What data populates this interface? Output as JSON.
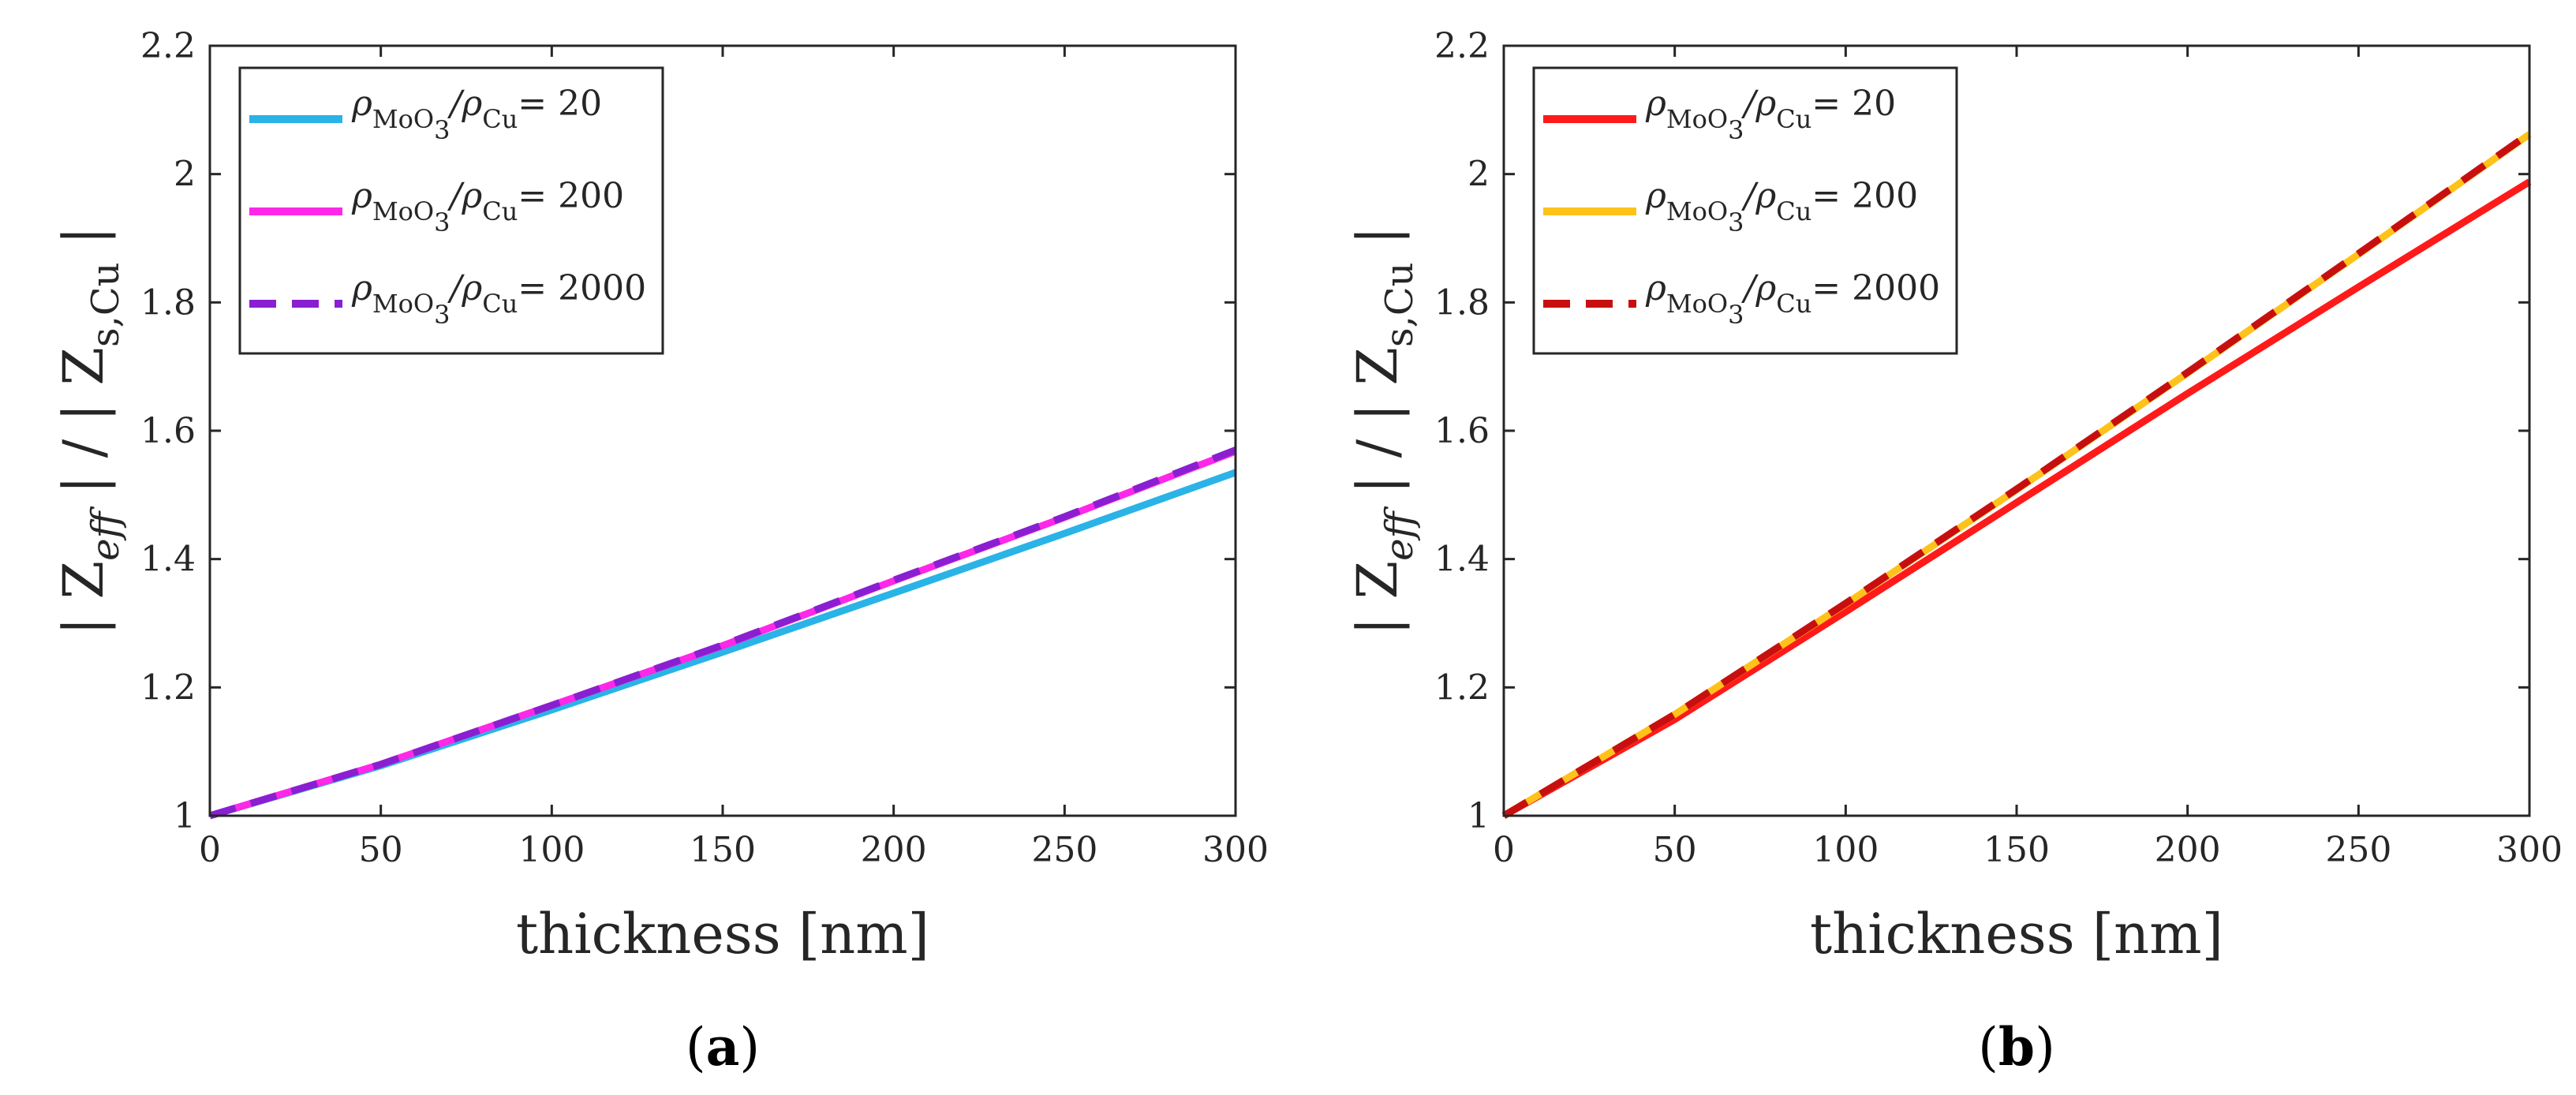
{
  "chart_data": [
    {
      "type": "line",
      "panel": "a",
      "caption": {
        "open": "(",
        "letter": "a",
        "close": ")"
      },
      "xlabel": "thickness [nm]",
      "ylabel": {
        "prefix": "| Z",
        "sub1": "eff",
        "middle": " | / | Z",
        "sub2": "s,Cu",
        "suffix": " |"
      },
      "xlim": [
        0,
        300
      ],
      "ylim": [
        1,
        2.2
      ],
      "xticks": [
        0,
        50,
        100,
        150,
        200,
        250,
        300
      ],
      "yticks": [
        1,
        1.2,
        1.4,
        1.6,
        1.8,
        2,
        2.2
      ],
      "xtick_labels": [
        "0",
        "50",
        "100",
        "150",
        "200",
        "250",
        "300"
      ],
      "ytick_labels": [
        "1",
        "1.2",
        "1.4",
        "1.6",
        "1.8",
        "2",
        "2.2"
      ],
      "legend_position": "top-left",
      "x": [
        0,
        50,
        100,
        150,
        200,
        250,
        300
      ],
      "series": [
        {
          "name": "ρMoO3/ρCu = 20",
          "rho": "ρ",
          "sub1": "MoO",
          "sub1b": "3",
          "slash": "/ρ",
          "sub2": "Cu",
          "eq": "= 20",
          "color": "#2ab3e6",
          "dash": false,
          "values": [
            1.0,
            1.078,
            1.165,
            1.255,
            1.347,
            1.44,
            1.535
          ]
        },
        {
          "name": "ρMoO3/ρCu = 200",
          "rho": "ρ",
          "sub1": "MoO",
          "sub1b": "3",
          "slash": "/ρ",
          "sub2": "Cu",
          "eq": "= 200",
          "color": "#ff27e8",
          "dash": false,
          "values": [
            1.0,
            1.08,
            1.172,
            1.265,
            1.366,
            1.465,
            1.568
          ]
        },
        {
          "name": "ρMoO3/ρCu = 2000",
          "rho": "ρ",
          "sub1": "MoO",
          "sub1b": "3",
          "slash": "/ρ",
          "sub2": "Cu",
          "eq": "= 2000",
          "color": "#8a1fd1",
          "dash": true,
          "values": [
            1.0,
            1.08,
            1.172,
            1.266,
            1.367,
            1.466,
            1.57
          ]
        }
      ]
    },
    {
      "type": "line",
      "panel": "b",
      "caption": {
        "open": "(",
        "letter": "b",
        "close": ")"
      },
      "xlabel": "thickness [nm]",
      "ylabel": {
        "prefix": "| Z",
        "sub1": "eff",
        "middle": " | / | Z",
        "sub2": "s,Cu",
        "suffix": " |"
      },
      "xlim": [
        0,
        300
      ],
      "ylim": [
        1,
        2.2
      ],
      "xticks": [
        0,
        50,
        100,
        150,
        200,
        250,
        300
      ],
      "yticks": [
        1,
        1.2,
        1.4,
        1.6,
        1.8,
        2,
        2.2
      ],
      "xtick_labels": [
        "0",
        "50",
        "100",
        "150",
        "200",
        "250",
        "300"
      ],
      "ytick_labels": [
        "1",
        "1.2",
        "1.4",
        "1.6",
        "1.8",
        "2",
        "2.2"
      ],
      "legend_position": "top-left",
      "x": [
        0,
        50,
        100,
        150,
        200,
        250,
        300
      ],
      "series": [
        {
          "name": "ρMoO3/ρCu = 20",
          "rho": "ρ",
          "sub1": "MoO",
          "sub1b": "3",
          "slash": "/ρ",
          "sub2": "Cu",
          "eq": "= 20",
          "color": "#ff1a1a",
          "dash": false,
          "values": [
            1.0,
            1.15,
            1.318,
            1.488,
            1.658,
            1.824,
            1.988
          ]
        },
        {
          "name": "ρMoO3/ρCu = 200",
          "rho": "ρ",
          "sub1": "MoO",
          "sub1b": "3",
          "slash": "/ρ",
          "sub2": "Cu",
          "eq": "= 200",
          "color": "#ffc21a",
          "dash": false,
          "values": [
            1.0,
            1.158,
            1.33,
            1.508,
            1.69,
            1.875,
            2.062
          ]
        },
        {
          "name": "ρMoO3/ρCu = 2000",
          "rho": "ρ",
          "sub1": "MoO",
          "sub1b": "3",
          "slash": "/ρ",
          "sub2": "Cu",
          "eq": "= 2000",
          "color": "#c80f0f",
          "dash": true,
          "values": [
            1.0,
            1.158,
            1.331,
            1.509,
            1.691,
            1.876,
            2.063
          ]
        }
      ]
    }
  ]
}
